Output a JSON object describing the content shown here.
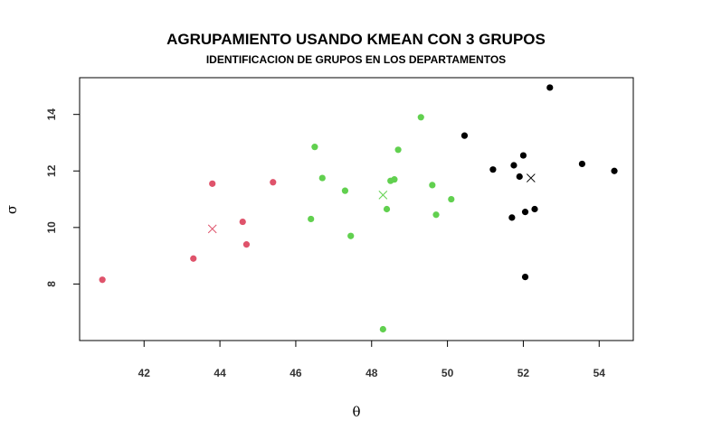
{
  "chart_data": {
    "type": "scatter",
    "title": "AGRUPAMIENTO USANDO KMEAN CON 3 GRUPOS",
    "subtitle": "IDENTIFICACION DE GRUPOS EN LOS DEPARTAMENTOS",
    "xlabel": "θ",
    "ylabel": "σ",
    "xlim": [
      40.3,
      54.9
    ],
    "ylim": [
      6.0,
      15.3
    ],
    "x_ticks": [
      42,
      44,
      46,
      48,
      50,
      52,
      54
    ],
    "y_ticks": [
      8,
      10,
      12,
      14
    ],
    "grid": false,
    "series": [
      {
        "color": "#DF536B",
        "points": [
          [
            40.9,
            8.15
          ],
          [
            43.3,
            8.9
          ],
          [
            43.8,
            11.55
          ],
          [
            44.6,
            10.2
          ],
          [
            44.7,
            9.4
          ],
          [
            45.4,
            11.6
          ]
        ],
        "center": [
          43.8,
          9.95
        ]
      },
      {
        "color": "#61D04F",
        "points": [
          [
            46.4,
            10.3
          ],
          [
            46.5,
            12.85
          ],
          [
            46.7,
            11.75
          ],
          [
            47.3,
            11.3
          ],
          [
            47.45,
            9.7
          ],
          [
            48.3,
            6.4
          ],
          [
            48.4,
            10.65
          ],
          [
            48.5,
            11.65
          ],
          [
            48.6,
            11.7
          ],
          [
            48.7,
            12.75
          ],
          [
            49.3,
            13.9
          ],
          [
            49.6,
            11.5
          ],
          [
            49.7,
            10.45
          ],
          [
            50.1,
            11.0
          ]
        ],
        "center": [
          48.3,
          11.15
        ]
      },
      {
        "color": "#000000",
        "points": [
          [
            50.45,
            13.25
          ],
          [
            51.2,
            12.05
          ],
          [
            51.7,
            10.35
          ],
          [
            51.75,
            12.2
          ],
          [
            51.9,
            11.8
          ],
          [
            52.0,
            12.55
          ],
          [
            52.05,
            10.55
          ],
          [
            52.05,
            8.25
          ],
          [
            52.3,
            10.65
          ],
          [
            52.7,
            14.95
          ],
          [
            53.55,
            12.25
          ],
          [
            54.4,
            12.0
          ]
        ],
        "center": [
          52.2,
          11.75
        ]
      }
    ]
  }
}
